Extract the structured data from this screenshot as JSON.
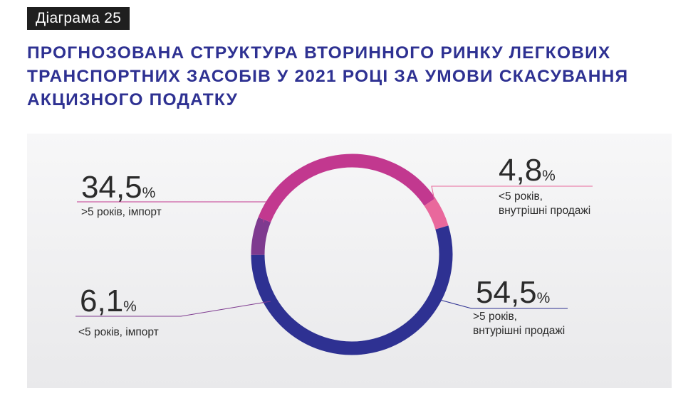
{
  "header": {
    "tag": "Діаграма 25",
    "title_lines": [
      "ПРОГНОЗОВАНА СТРУКТУРА ВТОРИННОГО РИНКУ ЛЕГКОВИХ",
      "ТРАНСПОРТНИХ ЗАСОБІВ У 2021 РОЦІ ЗА УМОВИ СКАСУВАННЯ",
      "АКЦИЗНОГО ПОДАТКУ"
    ]
  },
  "chart_data": {
    "type": "pie",
    "variant": "donut",
    "unit": "%",
    "slices": [
      {
        "value_label": "4,8",
        "value": 4.8,
        "caption": [
          "<5 років,",
          "внутрішні продажі"
        ],
        "color": "#e9689c"
      },
      {
        "value_label": "54,5",
        "value": 54.5,
        "caption": [
          ">5 років,",
          "внтурішні продажі"
        ],
        "color": "#2e3192"
      },
      {
        "value_label": "6,1",
        "value": 6.1,
        "caption": [
          "<5 років, імпорт"
        ],
        "color": "#7e3a8f"
      },
      {
        "value_label": "34,5",
        "value": 34.5,
        "caption": [
          ">5 років, імпорт"
        ],
        "color": "#c2388f"
      }
    ]
  }
}
